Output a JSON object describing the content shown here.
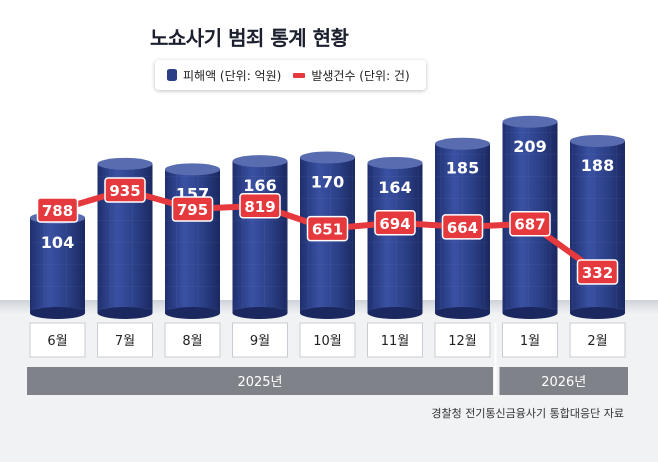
{
  "title": "노쇼사기 범죄 통계 현황",
  "legend": {
    "damage": "피해액 (단위: 억원)",
    "count": "발생건수 (단위: 건)"
  },
  "source": "경찰청 전기통신금융사기 통합대응단 자료",
  "colors": {
    "bar": "#2b3f86",
    "bar_top": "#5a6cb0",
    "line": "#e5393d",
    "label_box": "#e5393d"
  },
  "chart_data": {
    "type": "bar",
    "categories": [
      "6월",
      "7월",
      "8월",
      "9월",
      "10월",
      "11월",
      "12월",
      "1월",
      "2월"
    ],
    "years": [
      {
        "label": "2025년",
        "months": [
          "6월",
          "7월",
          "8월",
          "9월",
          "10월",
          "11월",
          "12월"
        ]
      },
      {
        "label": "2026년",
        "months": [
          "1월",
          "2월"
        ]
      }
    ],
    "series": [
      {
        "name": "피해액 (단위: 억원)",
        "type": "bar",
        "values": [
          104,
          163,
          157,
          166,
          170,
          164,
          185,
          209,
          188
        ]
      },
      {
        "name": "발생건수 (단위: 건)",
        "type": "line",
        "values": [
          788,
          935,
          795,
          819,
          651,
          694,
          664,
          687,
          332
        ]
      }
    ]
  }
}
